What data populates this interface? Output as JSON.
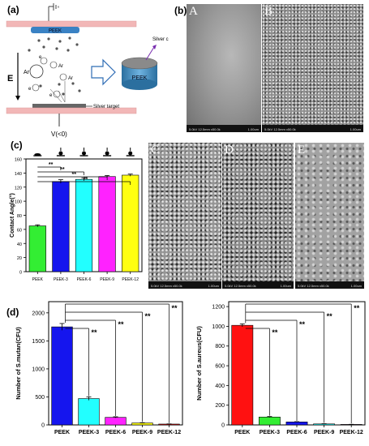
{
  "panel_labels": {
    "a": "(a)",
    "b": "(b)",
    "c": "(c)",
    "d": "(d)"
  },
  "schematic": {
    "top_sample": "PEEK",
    "field": "E",
    "electron": "e",
    "argon": "Ar",
    "argon_ion": "Ar",
    "coated_sample": "PEEK",
    "coated_callout": "Silver c",
    "target": "Silver target",
    "voltage": "V(<0)"
  },
  "sem": {
    "panels": [
      {
        "letter": "A",
        "info": "5.0kV 12.5mm x50.0k",
        "scale": "1.00um"
      },
      {
        "letter": "B",
        "info": "5.0kV 12.5mm x50.0k",
        "scale": "1.00um"
      },
      {
        "letter": "C",
        "info": "5.0kV 12.5mm x50.0k",
        "scale": "1.00um"
      },
      {
        "letter": "D",
        "info": "5.0kV 12.5mm x50.0k",
        "scale": "1.00um"
      },
      {
        "letter": "E",
        "info": "5.0kV 12.5mm x50.0k",
        "scale": "1.00um"
      }
    ]
  },
  "colors": {
    "green": "#33ee33",
    "blue": "#1515ee",
    "cyan": "#22ffff",
    "magenta": "#ff22ff",
    "yellow": "#ffff11",
    "red": "#ff1111"
  },
  "chart_data": [
    {
      "type": "bar",
      "id": "contact-angle",
      "categories": [
        "PEEK",
        "PEEK-3",
        "PEEK-6",
        "PEEK-9",
        "PEEK-12"
      ],
      "values": [
        65,
        128,
        131,
        135,
        137
      ],
      "errors": [
        1.5,
        2.5,
        2,
        1.5,
        1.5
      ],
      "colors": [
        "#33ee33",
        "#1515ee",
        "#22ffff",
        "#ff22ff",
        "#ffff11"
      ],
      "ylabel": "Contact Angle(°)",
      "ylim": [
        0,
        160
      ],
      "yticks": [
        0,
        20,
        40,
        60,
        80,
        100,
        120,
        140,
        160
      ],
      "significance": "**"
    },
    {
      "type": "bar",
      "id": "s-mutans",
      "categories": [
        "PEEK",
        "PEEK-3",
        "PEEK-6",
        "PEEK-9",
        "PEEK-12"
      ],
      "values": [
        1750,
        470,
        135,
        35,
        15
      ],
      "errors": [
        60,
        30,
        10,
        5,
        3
      ],
      "colors": [
        "#1515ee",
        "#22ffff",
        "#ff22ff",
        "#ffff11",
        "#ff1111"
      ],
      "ylabel": "Number of S.mutan(CFU)",
      "ylim": [
        0,
        2200
      ],
      "yticks": [
        0,
        500,
        1000,
        1500,
        2000
      ],
      "significance": "**"
    },
    {
      "type": "bar",
      "id": "s-aureus",
      "categories": [
        "PEEK",
        "PEEK-3",
        "PEEK-6",
        "PEEK-9",
        "PEEK-12"
      ],
      "values": [
        1010,
        80,
        30,
        10,
        5
      ],
      "errors": [
        15,
        5,
        3,
        2,
        1
      ],
      "colors": [
        "#ff1111",
        "#33ee33",
        "#1515ee",
        "#22ffff",
        "#ff22ff"
      ],
      "ylabel": "Number of S.aureus(CFU)",
      "ylim": [
        0,
        1250
      ],
      "yticks": [
        0,
        200,
        400,
        600,
        800,
        1000,
        1200
      ],
      "significance": "**"
    }
  ]
}
